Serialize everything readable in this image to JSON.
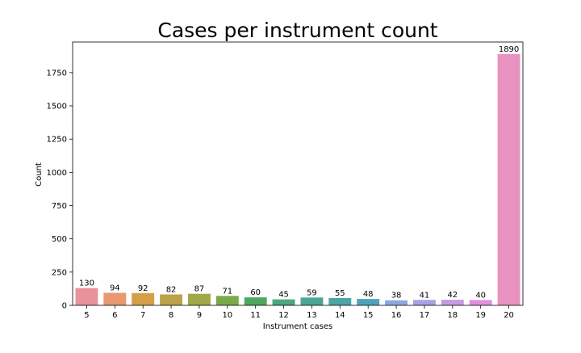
{
  "chart_data": {
    "type": "bar",
    "title": "Cases per instrument count",
    "xlabel": "Instrument cases",
    "ylabel": "Count",
    "categories": [
      "5",
      "6",
      "7",
      "8",
      "9",
      "10",
      "11",
      "12",
      "13",
      "14",
      "15",
      "16",
      "17",
      "18",
      "19",
      "20"
    ],
    "values": [
      130,
      94,
      92,
      82,
      87,
      71,
      60,
      45,
      59,
      55,
      48,
      38,
      41,
      42,
      40,
      1890
    ],
    "data_labels": [
      "130",
      "94",
      "92",
      "82",
      "87",
      "71",
      "60",
      "45",
      "59",
      "55",
      "48",
      "38",
      "41",
      "42",
      "40",
      "1890"
    ],
    "colors": [
      "#e8939a",
      "#e8976e",
      "#d3a048",
      "#bba24b",
      "#a2a84a",
      "#7aab48",
      "#4fa860",
      "#4ea683",
      "#4ca696",
      "#4ca4a6",
      "#4fa5b8",
      "#8ea8e0",
      "#a8a2e6",
      "#c89ae4",
      "#e38ee0",
      "#e991c1"
    ],
    "ylim": [
      0,
      1980
    ],
    "yticks": [
      0,
      250,
      500,
      750,
      1000,
      1250,
      1500,
      1750
    ],
    "ytick_labels": [
      "0",
      "250",
      "500",
      "750",
      "1000",
      "1250",
      "1500",
      "1750"
    ],
    "grid": false,
    "legend": "none"
  }
}
